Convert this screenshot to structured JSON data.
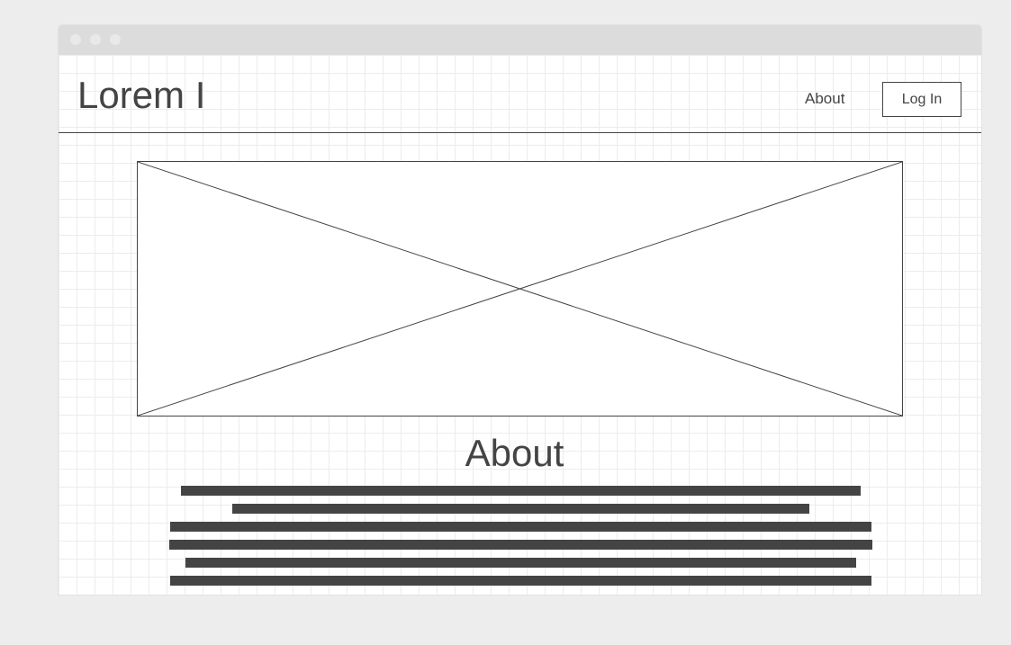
{
  "window": {
    "controls": [
      "window-dot-1",
      "window-dot-2",
      "window-dot-3"
    ]
  },
  "header": {
    "logo": "Lorem I",
    "nav": {
      "about_label": "About",
      "login_label": "Log In"
    }
  },
  "hero": {
    "image_placeholder": "image-placeholder"
  },
  "about": {
    "title": "About",
    "paragraph_lines": 6
  },
  "colors": {
    "ink": "#444444",
    "grid": "#ececec",
    "chrome": "#dcdcdc",
    "background": "#ededed"
  }
}
